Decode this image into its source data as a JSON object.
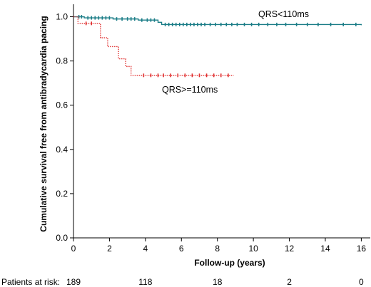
{
  "chart_data": {
    "type": "line",
    "title": "",
    "xlabel": "Follow-up (years)",
    "ylabel": "Cumulative survival free from antibradycardia pacing",
    "xlim": [
      0,
      16.5
    ],
    "ylim": [
      0,
      1.05
    ],
    "x_ticks": [
      0,
      2,
      4,
      6,
      8,
      10,
      12,
      14,
      16
    ],
    "y_ticks": [
      0.0,
      0.2,
      0.4,
      0.6,
      0.8,
      1.0
    ],
    "x_tick_labels": [
      "0",
      "2",
      "4",
      "6",
      "8",
      "10",
      "12",
      "14",
      "16"
    ],
    "y_tick_labels": [
      "0.0",
      "0.2",
      "0.4",
      "0.6",
      "0.8",
      "1.0"
    ],
    "grid": false,
    "series": [
      {
        "name": "QRS<110ms",
        "color": "#1b7d87",
        "line_style": "solid",
        "steps": [
          [
            0,
            1.0
          ],
          [
            0.6,
            0.995
          ],
          [
            2.2,
            0.99
          ],
          [
            3.6,
            0.985
          ],
          [
            4.7,
            0.975
          ],
          [
            4.9,
            0.965
          ],
          [
            16,
            0.962
          ]
        ],
        "censor_x": [
          0.3,
          0.45,
          0.8,
          1.0,
          1.2,
          1.4,
          1.6,
          1.8,
          2.0,
          2.4,
          2.7,
          3.0,
          3.2,
          3.4,
          3.8,
          4.1,
          4.3,
          4.5,
          5.1,
          5.3,
          5.5,
          5.7,
          5.9,
          6.1,
          6.3,
          6.5,
          6.7,
          6.9,
          7.1,
          7.3,
          7.6,
          7.9,
          8.2,
          8.5,
          8.8,
          9.1,
          9.5,
          9.9,
          10.3,
          10.8,
          11.3,
          11.8,
          12.4,
          13.0,
          13.6,
          14.3,
          15.0,
          15.7
        ]
      },
      {
        "name": "QRS>=110ms",
        "color": "#e03030",
        "line_style": "dotted",
        "steps": [
          [
            0,
            1.0
          ],
          [
            0.25,
            0.97
          ],
          [
            1.5,
            0.905
          ],
          [
            1.9,
            0.865
          ],
          [
            2.5,
            0.81
          ],
          [
            2.9,
            0.775
          ],
          [
            3.2,
            0.735
          ],
          [
            8.9,
            0.735
          ]
        ],
        "censor_x": [
          0.7,
          1.0,
          3.9,
          4.3,
          4.7,
          5.0,
          5.4,
          5.8,
          6.2,
          6.6,
          7.0,
          7.4,
          7.8,
          8.2,
          8.6
        ]
      }
    ],
    "annotations": [
      {
        "text": "QRS<110ms",
        "series": "QRS<110ms"
      },
      {
        "text": "QRS>=110ms",
        "series": "QRS>=110ms"
      }
    ],
    "patients_at_risk": {
      "label": "Patients at risk:",
      "entries": [
        {
          "x": 0,
          "value": "189"
        },
        {
          "x": 4,
          "value": "118"
        },
        {
          "x": 8,
          "value": "18"
        },
        {
          "x": 12,
          "value": "2"
        },
        {
          "x": 16,
          "value": "0"
        }
      ]
    }
  }
}
